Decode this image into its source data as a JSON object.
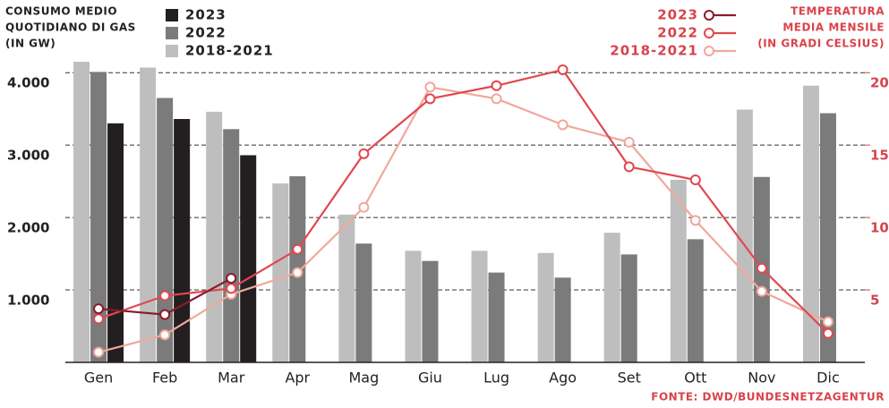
{
  "chart_data": {
    "type": "bar",
    "title_lines": [
      "CONSUMO MEDIO",
      "QUOTIDIANO DI GAS",
      "(IN GW)"
    ],
    "y2_title_lines": [
      "TEMPERATURA",
      "MEDIA MENSILE",
      "(IN GRADI CELSIUS)"
    ],
    "source": "FONTE: DWD/BUNDESNETZAGENTUR",
    "categories": [
      "Gen",
      "Feb",
      "Mar",
      "Apr",
      "Mag",
      "Giu",
      "Lug",
      "Ago",
      "Set",
      "Ott",
      "Nov",
      "Dic"
    ],
    "series": [
      {
        "name": "2023",
        "type": "bar",
        "axis": "y",
        "color": "#231f20",
        "values": [
          3300,
          3360,
          2860,
          null,
          null,
          null,
          null,
          null,
          null,
          null,
          null,
          null
        ]
      },
      {
        "name": "2022",
        "type": "bar",
        "axis": "y",
        "color": "#7b7b7b",
        "values": [
          4010,
          3650,
          3220,
          2570,
          1640,
          1400,
          1240,
          1170,
          1490,
          1700,
          2560,
          3440
        ]
      },
      {
        "name": "2018-2021",
        "type": "bar",
        "axis": "y",
        "color": "#bebebe",
        "values": [
          4150,
          4070,
          3460,
          2470,
          2040,
          1540,
          1540,
          1510,
          1790,
          2520,
          3490,
          3820
        ]
      },
      {
        "name": "2023",
        "type": "line",
        "axis": "y2",
        "color": "#8b1a2b",
        "values": [
          3.7,
          3.3,
          5.8,
          null,
          null,
          null,
          null,
          null,
          null,
          null,
          null,
          null
        ]
      },
      {
        "name": "2022",
        "type": "line",
        "axis": "y2",
        "color": "#e0484f",
        "values": [
          3.0,
          4.6,
          5.1,
          7.8,
          14.4,
          18.2,
          19.1,
          20.2,
          13.5,
          12.6,
          6.5,
          2.0
        ]
      },
      {
        "name": "2018-2021",
        "type": "line",
        "axis": "y2",
        "color": "#f0a89c",
        "values": [
          0.7,
          1.9,
          4.7,
          6.2,
          10.7,
          19.0,
          18.2,
          16.4,
          15.2,
          9.8,
          4.9,
          2.8
        ]
      }
    ],
    "ylim": [
      0,
      4200
    ],
    "yticks": [
      {
        "value": 1000,
        "label": "1.000"
      },
      {
        "value": 2000,
        "label": "2.000"
      },
      {
        "value": 3000,
        "label": "3.000"
      },
      {
        "value": 4000,
        "label": "4.000"
      }
    ],
    "y2lim": [
      0,
      21
    ],
    "y2ticks": [
      5,
      10,
      15,
      20
    ],
    "grid": true
  }
}
